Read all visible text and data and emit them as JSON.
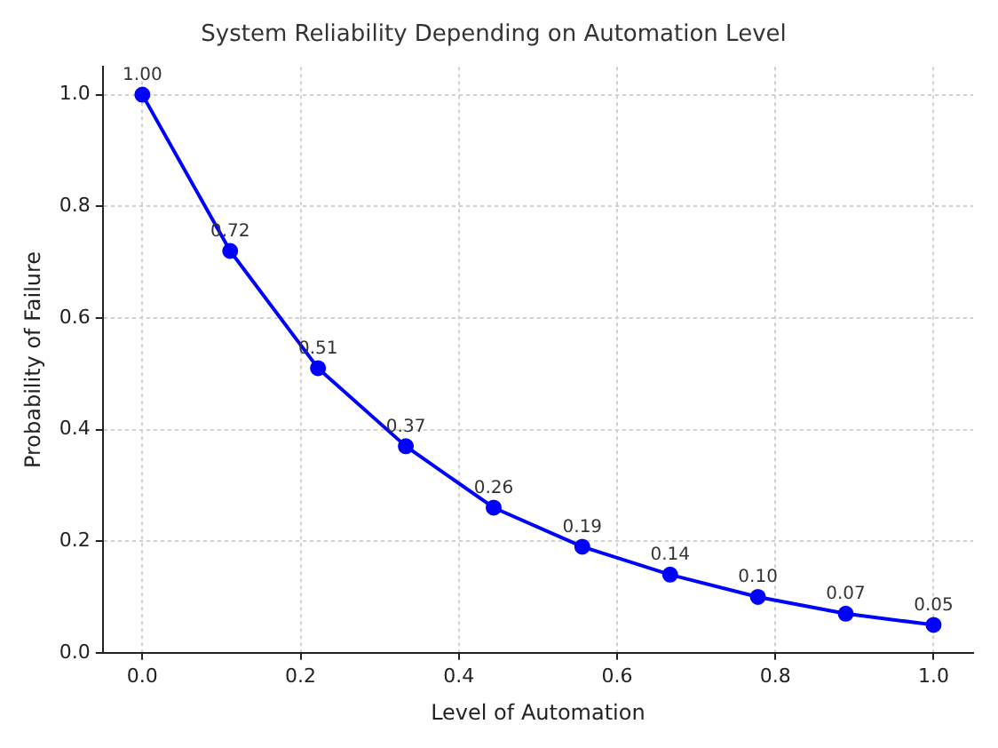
{
  "chart_data": {
    "type": "line",
    "title": "System Reliability Depending on Automation Level",
    "xlabel": "Level of Automation",
    "ylabel": "Probability of Failure",
    "x": [
      0,
      0.111,
      0.222,
      0.333,
      0.444,
      0.556,
      0.667,
      0.778,
      0.889,
      1.0
    ],
    "series": [
      {
        "color": "#0000ff",
        "values": [
          1.0,
          0.72,
          0.51,
          0.37,
          0.26,
          0.19,
          0.14,
          0.1,
          0.07,
          0.05
        ],
        "value_labels": [
          "1.00",
          "0.72",
          "0.51",
          "0.37",
          "0.26",
          "0.19",
          "0.14",
          "0.10",
          "0.07",
          "0.05"
        ]
      }
    ],
    "xlim": [
      -0.05,
      1.05
    ],
    "ylim": [
      0,
      1.05
    ],
    "xticks": [
      {
        "value": 0,
        "label": "0.0"
      },
      {
        "value": 0.2,
        "label": "0.2"
      },
      {
        "value": 0.4,
        "label": "0.4"
      },
      {
        "value": 0.6,
        "label": "0.6"
      },
      {
        "value": 0.8,
        "label": "0.8"
      },
      {
        "value": 1.0,
        "label": "1.0"
      }
    ],
    "yticks": [
      {
        "value": 0,
        "label": "0.0"
      },
      {
        "value": 0.2,
        "label": "0.2"
      },
      {
        "value": 0.4,
        "label": "0.4"
      },
      {
        "value": 0.6,
        "label": "0.6"
      },
      {
        "value": 0.8,
        "label": "0.8"
      },
      {
        "value": 1.0,
        "label": "1.0"
      }
    ],
    "grid": true,
    "marker": "circle",
    "line_style": "solid"
  }
}
